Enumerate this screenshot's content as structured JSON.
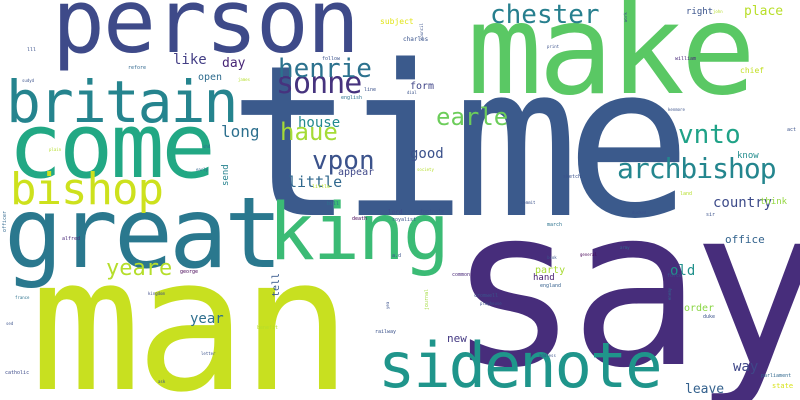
{
  "words": [
    {
      "text": "time",
      "color": "#3b5a8c"
    },
    {
      "text": "say",
      "color": "#472d7b"
    },
    {
      "text": "man",
      "color": "#c8e020"
    },
    {
      "text": "make",
      "color": "#5ac864"
    },
    {
      "text": "person",
      "color": "#3e4a89"
    },
    {
      "text": "come",
      "color": "#22a884"
    },
    {
      "text": "great",
      "color": "#2a788e"
    },
    {
      "text": "britain",
      "color": "#25848e"
    },
    {
      "text": "king",
      "color": "#3bbb75"
    },
    {
      "text": "sidenote",
      "color": "#1f958b"
    },
    {
      "text": "bishop",
      "color": "#cde11d"
    },
    {
      "text": "archbishop",
      "color": "#24868e"
    },
    {
      "text": "sonne",
      "color": "#46337e"
    },
    {
      "text": "henrie",
      "color": "#2c728e"
    },
    {
      "text": "vpon",
      "color": "#3b528b"
    },
    {
      "text": "chester",
      "color": "#277f8e"
    },
    {
      "text": "vnto",
      "color": "#1fa287"
    },
    {
      "text": "earle",
      "color": "#6ccd5a"
    },
    {
      "text": "haue",
      "color": "#a5db36"
    },
    {
      "text": "yeare",
      "color": "#b5de2b"
    },
    {
      "text": "long",
      "color": "#2d708e"
    },
    {
      "text": "house",
      "color": "#23898e"
    },
    {
      "text": "little",
      "color": "#31688e"
    },
    {
      "text": "country",
      "color": "#3e4c8a"
    },
    {
      "text": "good",
      "color": "#3b518b"
    },
    {
      "text": "like",
      "color": "#433e85"
    },
    {
      "text": "day",
      "color": "#482677"
    },
    {
      "text": "year",
      "color": "#2e6f8e"
    },
    {
      "text": "old",
      "color": "#21918c"
    },
    {
      "text": "office",
      "color": "#33638d"
    },
    {
      "text": "place",
      "color": "#b8de29"
    },
    {
      "text": "way",
      "color": "#3f4788"
    },
    {
      "text": "leave",
      "color": "#34618d"
    },
    {
      "text": "new",
      "color": "#443983"
    },
    {
      "text": "right",
      "color": "#3a548c"
    },
    {
      "text": "open",
      "color": "#2f6c8e"
    },
    {
      "text": "order",
      "color": "#8bd646"
    },
    {
      "text": "appear",
      "color": "#3f4889"
    },
    {
      "text": "party",
      "color": "#a8db34"
    },
    {
      "text": "form",
      "color": "#404588"
    },
    {
      "text": "know",
      "color": "#228c8d"
    },
    {
      "text": "think",
      "color": "#94d741"
    },
    {
      "text": "tell",
      "color": "#38598c"
    },
    {
      "text": "send",
      "color": "#26828e"
    },
    {
      "text": "hand",
      "color": "#481f70"
    },
    {
      "text": "subject",
      "color": "#e2e418"
    },
    {
      "text": "chief",
      "color": "#c2df23"
    },
    {
      "text": "charles",
      "color": "#3a548c"
    },
    {
      "text": "lord",
      "color": "#3e4c8a"
    },
    {
      "text": "footnote",
      "color": "#3b528b"
    },
    {
      "text": "death",
      "color": "#440154"
    },
    {
      "text": "royalist",
      "color": "#3b528b"
    },
    {
      "text": "bill",
      "color": "#2c728e"
    },
    {
      "text": "little",
      "color": "#b8de29"
    },
    {
      "text": "state",
      "color": "#d8e219"
    },
    {
      "text": "parliament",
      "color": "#31688e"
    },
    {
      "text": "england",
      "color": "#35608d"
    },
    {
      "text": "cromwell",
      "color": "#3b528b"
    },
    {
      "text": "playhouse",
      "color": "#3b528b"
    },
    {
      "text": "commons",
      "color": "#482878"
    },
    {
      "text": "journal",
      "color": "#a0da39"
    },
    {
      "text": "george",
      "color": "#440154"
    },
    {
      "text": "kingdom",
      "color": "#3e4c8a"
    },
    {
      "text": "alfred",
      "color": "#482878"
    },
    {
      "text": "benefit",
      "color": "#b5de2b"
    },
    {
      "text": "letter",
      "color": "#3b528b"
    },
    {
      "text": "railway",
      "color": "#3b528b"
    },
    {
      "text": "catholic",
      "color": "#3e4c8a"
    },
    {
      "text": "france",
      "color": "#2c728e"
    },
    {
      "text": "officer",
      "color": "#31688e"
    },
    {
      "text": "sketch",
      "color": "#3b528b"
    },
    {
      "text": "march",
      "color": "#2c728e"
    },
    {
      "text": "force",
      "color": "#3b528b"
    },
    {
      "text": "army",
      "color": "#31688e"
    },
    {
      "text": "duke",
      "color": "#3b528b"
    },
    {
      "text": "general",
      "color": "#440154"
    },
    {
      "text": "book",
      "color": "#3b528b"
    },
    {
      "text": "commit",
      "color": "#3b528b"
    },
    {
      "text": "william",
      "color": "#482878"
    },
    {
      "text": "follow",
      "color": "#3b528b"
    },
    {
      "text": "refore",
      "color": "#31688e"
    },
    {
      "text": "james",
      "color": "#b5de2b"
    },
    {
      "text": "english",
      "color": "#2c728e"
    },
    {
      "text": "line",
      "color": "#3b528b"
    },
    {
      "text": "council",
      "color": "#3b528b"
    },
    {
      "text": "work",
      "color": "#3b528b"
    },
    {
      "text": "print",
      "color": "#3b528b"
    },
    {
      "text": "john",
      "color": "#b5de2b"
    },
    {
      "text": "kenmore",
      "color": "#3b528b"
    },
    {
      "text": "act",
      "color": "#3b528b"
    },
    {
      "text": "sir",
      "color": "#3b528b"
    },
    {
      "text": "ducked",
      "color": "#3b528b"
    },
    {
      "text": "land",
      "color": "#b5de2b"
    },
    {
      "text": "address",
      "color": "#3b528b"
    },
    {
      "text": "ask",
      "color": "#3b528b"
    },
    {
      "text": "enemy",
      "color": "#31688e"
    },
    {
      "text": "a.d",
      "color": "#3b528b"
    },
    {
      "text": "society",
      "color": "#b5de2b"
    },
    {
      "text": "early",
      "color": "#31688e"
    },
    {
      "text": "plain",
      "color": "#b5de2b"
    },
    {
      "text": "sudyd",
      "color": "#3b528b"
    },
    {
      "text": "lll",
      "color": "#3b528b"
    },
    {
      "text": "sed",
      "color": "#3b528b"
    },
    {
      "text": "dial",
      "color": "#3b528b"
    },
    {
      "text": "yea",
      "color": "#3b528b"
    },
    {
      "text": "shd",
      "color": "#31688e"
    }
  ]
}
